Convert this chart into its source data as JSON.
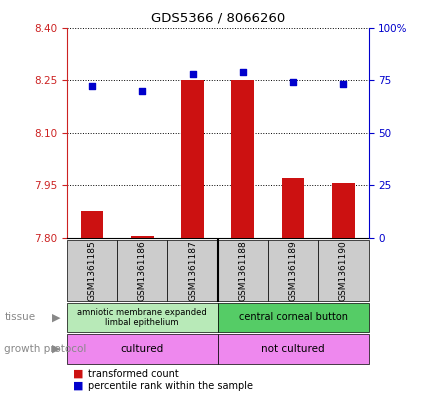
{
  "title": "GDS5366 / 8066260",
  "samples": [
    "GSM1361185",
    "GSM1361186",
    "GSM1361187",
    "GSM1361188",
    "GSM1361189",
    "GSM1361190"
  ],
  "transformed_counts": [
    7.875,
    7.805,
    8.25,
    8.25,
    7.97,
    7.955
  ],
  "percentile_ranks": [
    72,
    70,
    78,
    79,
    74,
    73
  ],
  "ylim_left": [
    7.8,
    8.4
  ],
  "ylim_right": [
    0,
    100
  ],
  "yticks_left": [
    7.8,
    7.95,
    8.1,
    8.25,
    8.4
  ],
  "yticks_right": [
    0,
    25,
    50,
    75,
    100
  ],
  "ytick_labels_right": [
    "0",
    "25",
    "50",
    "75",
    "100%"
  ],
  "bar_color": "#cc1111",
  "dot_color": "#0000cc",
  "bar_bottom": 7.8,
  "tissue_group1_label": "amniotic membrane expanded\nlimbal epithelium",
  "tissue_group1_color": "#b8eab8",
  "tissue_group2_label": "central corneal button",
  "tissue_group2_color": "#55cc66",
  "growth_group1_label": "cultured",
  "growth_group2_label": "not cultured",
  "growth_color": "#ee88ee",
  "tissue_label": "tissue",
  "growth_label": "growth protocol",
  "legend_red": "transformed count",
  "legend_blue": "percentile rank within the sample",
  "left_axis_color": "#cc2222",
  "right_axis_color": "#0000cc",
  "label_bg_color": "#cccccc",
  "split_at": 3
}
